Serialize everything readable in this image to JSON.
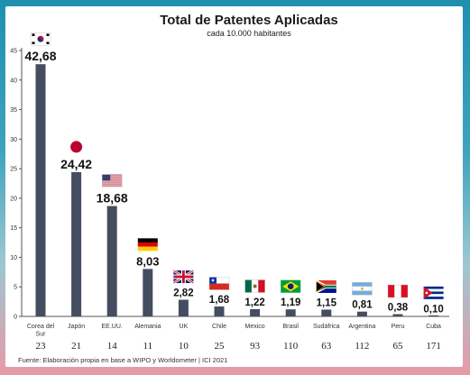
{
  "chart_data": {
    "type": "bar",
    "title": "Total de Patentes Aplicadas",
    "subtitle": "cada 10.000 habitantes",
    "ylim": [
      0,
      45
    ],
    "yticks": [
      0,
      5,
      10,
      15,
      20,
      25,
      30,
      35,
      40,
      45
    ],
    "grid": false,
    "bar_color": "#454e60",
    "categories": [
      "Corea del Sur",
      "Japón",
      "EE.UU.",
      "Alemania",
      "UK",
      "Chile",
      "Mexico",
      "Brasil",
      "Sudáfrica",
      "Argentina",
      "Peru",
      "Cuba"
    ],
    "category_label_lines": [
      [
        "Corea del",
        "Sur"
      ],
      [
        "Japón"
      ],
      [
        "EE.UU."
      ],
      [
        "Alemania"
      ],
      [
        "UK"
      ],
      [
        "Chile"
      ],
      [
        "Mexico"
      ],
      [
        "Brasil"
      ],
      [
        "Sudáfrica"
      ],
      [
        "Argentina"
      ],
      [
        "Peru"
      ],
      [
        "Cuba"
      ]
    ],
    "values": [
      42.68,
      24.42,
      18.68,
      8.03,
      2.82,
      1.68,
      1.22,
      1.19,
      1.15,
      0.81,
      0.38,
      0.1
    ],
    "data_labels": [
      "42,68",
      "24,42",
      "18,68",
      "8,03",
      "2,82",
      "1,68",
      "1,22",
      "1,19",
      "1,15",
      "0,81",
      "0,38",
      "0,10"
    ],
    "flag_icons": [
      "south-korea-flag-icon",
      "japan-flag-icon",
      "usa-flag-icon",
      "germany-flag-icon",
      "uk-flag-icon",
      "chile-flag-icon",
      "mexico-flag-icon",
      "brazil-flag-icon",
      "south-africa-flag-icon",
      "argentina-flag-icon",
      "peru-flag-icon",
      "cuba-flag-icon"
    ],
    "ranks": [
      "23",
      "21",
      "14",
      "11",
      "10",
      "25",
      "93",
      "110",
      "63",
      "112",
      "65",
      "171"
    ],
    "source": "Fuente: Elaboración propia en base a WIPO y Worldometer | ICI 2021"
  }
}
